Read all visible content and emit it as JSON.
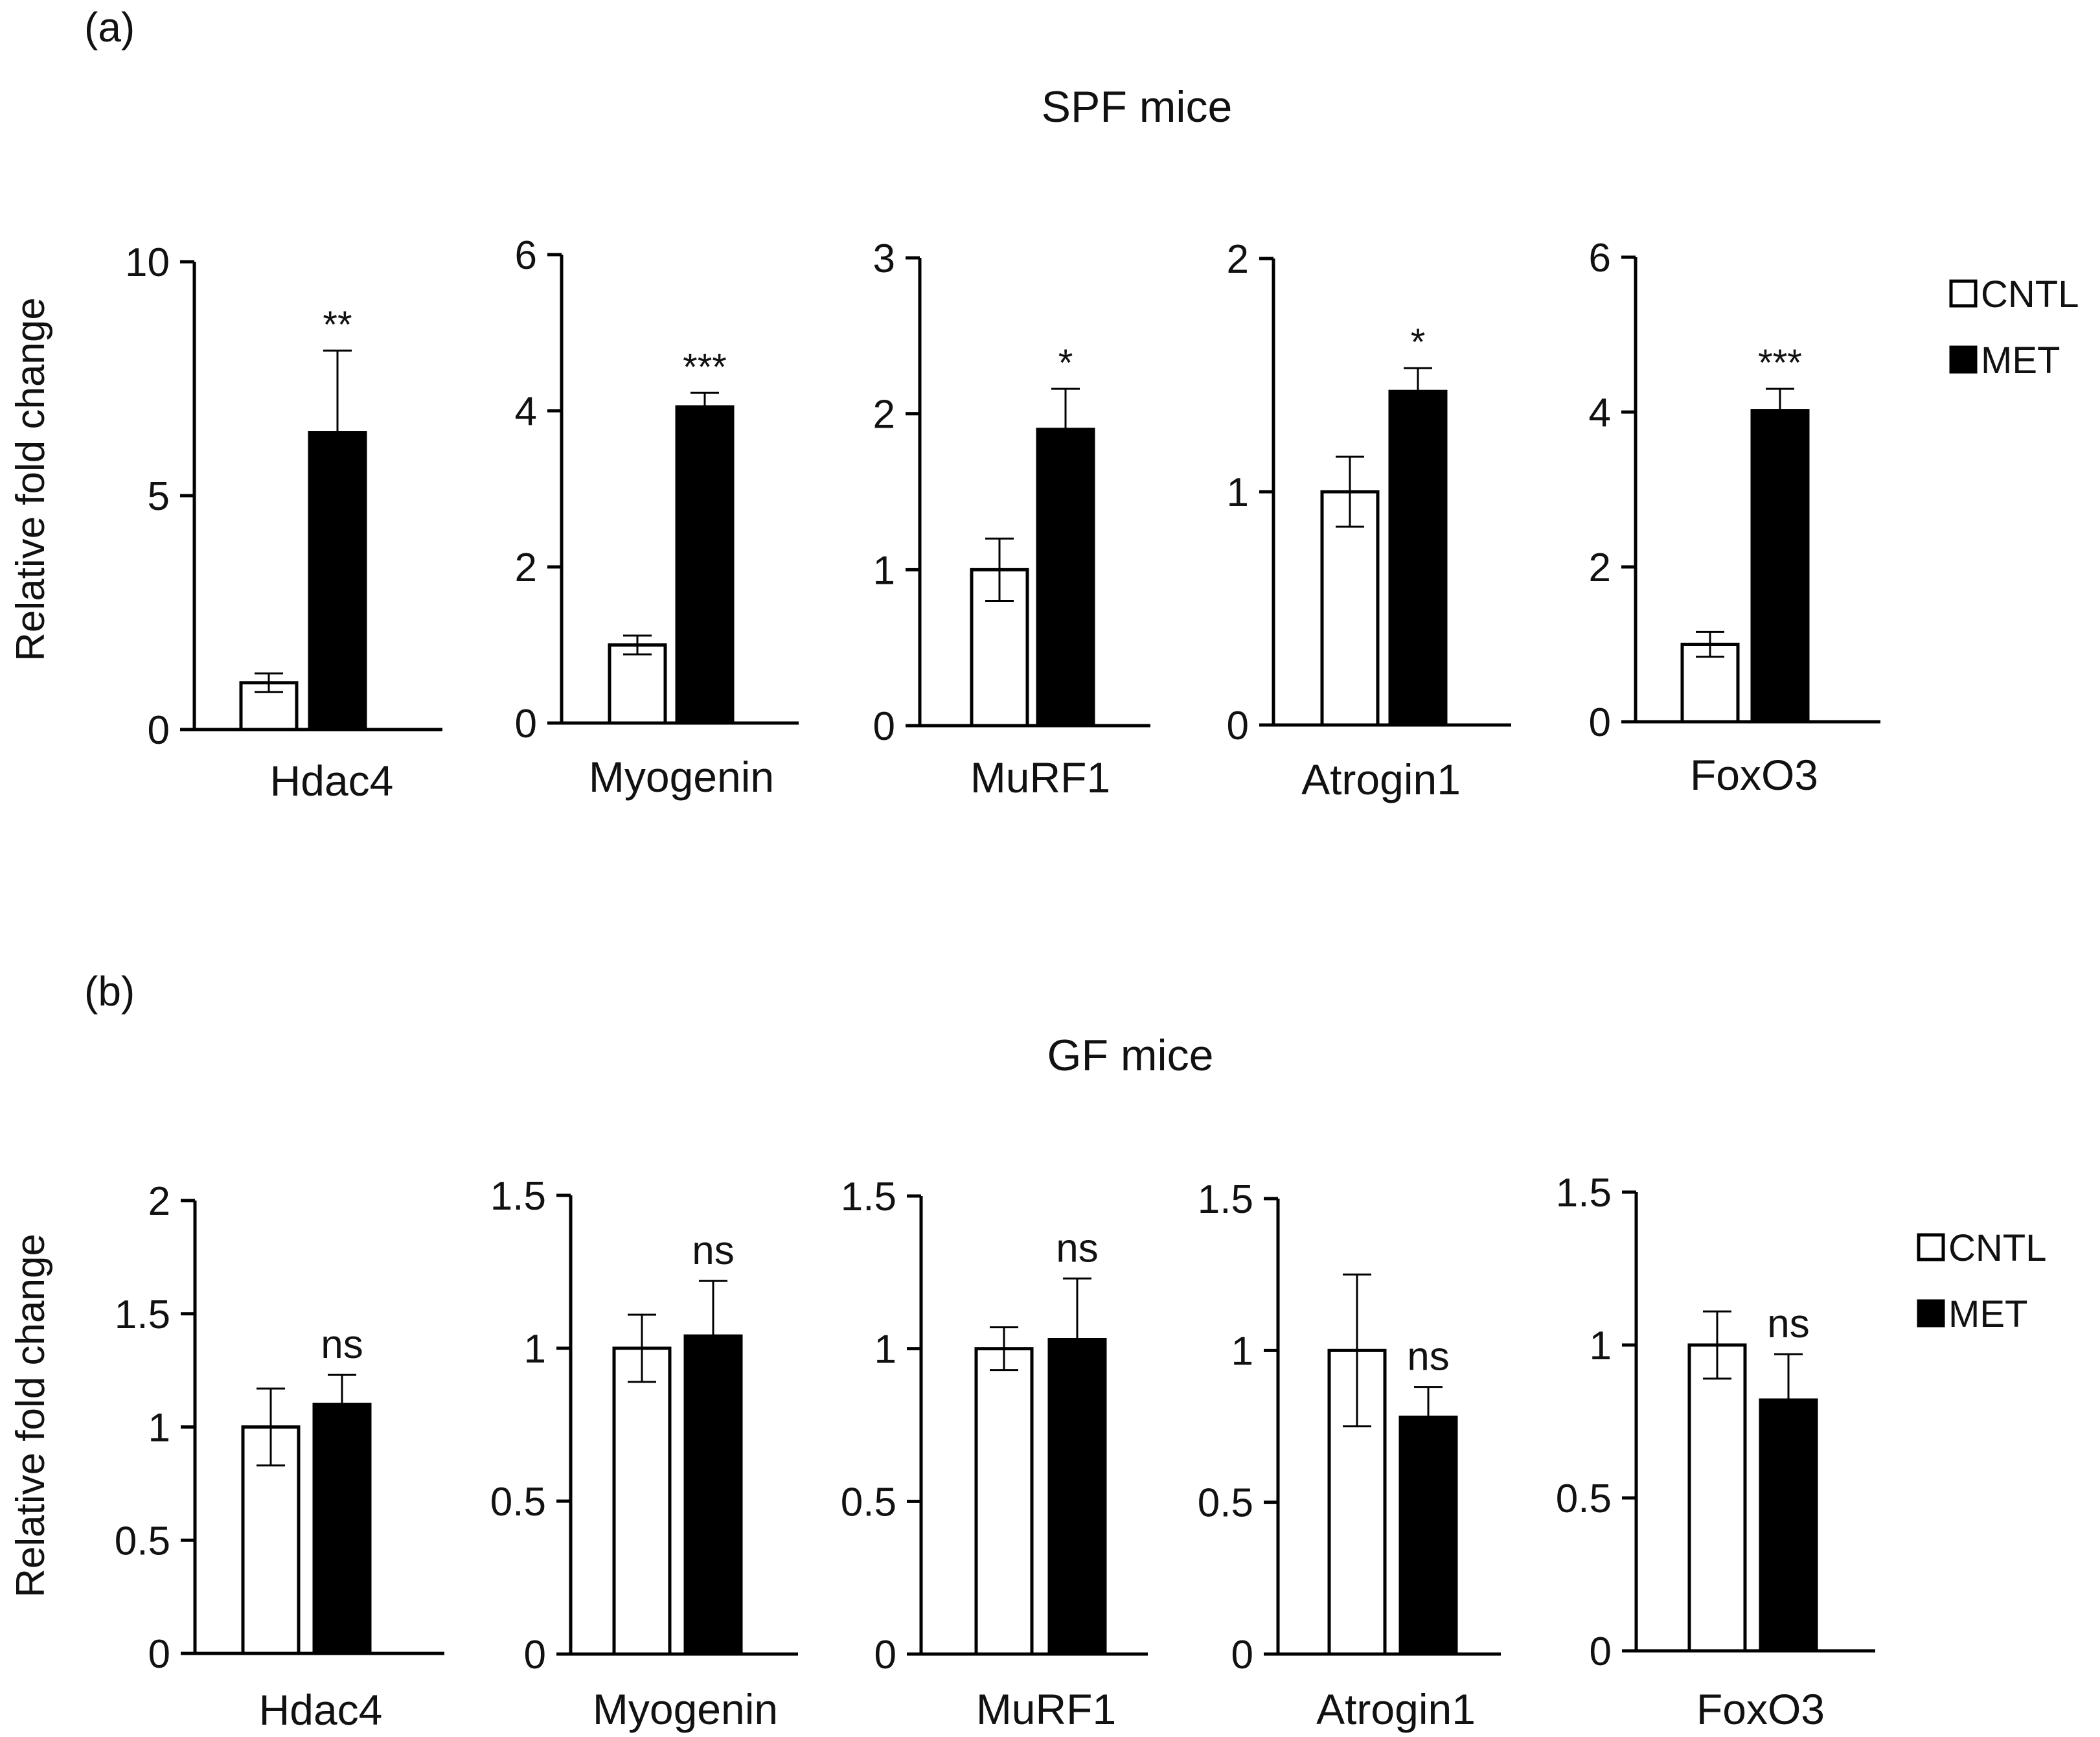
{
  "panels": [
    {
      "label": "(a)",
      "title": "SPF mice"
    },
    {
      "label": "(b)",
      "title": "GF mice"
    }
  ],
  "legend": {
    "cntl": "CNTL",
    "met": "MET"
  },
  "ylabel": "Relative fold change",
  "chart_data": [
    {
      "type": "bar",
      "panel": "(a)",
      "title": "SPF mice",
      "category": "Hdac4",
      "ylabel": "Relative fold change",
      "ylim": [
        0,
        10
      ],
      "ticks": [
        0,
        5,
        10
      ],
      "tick_labels": [
        "0",
        "5",
        "10"
      ],
      "series": [
        {
          "name": "CNTL",
          "value": 1.0,
          "error": 0.2
        },
        {
          "name": "MET",
          "value": 6.35,
          "error": 1.75
        }
      ],
      "annotation": "**"
    },
    {
      "type": "bar",
      "panel": "(a)",
      "title": "SPF mice",
      "category": "Myogenin",
      "ylabel": "",
      "ylim": [
        0,
        6
      ],
      "ticks": [
        0,
        2,
        4,
        6
      ],
      "tick_labels": [
        "0",
        "2",
        "4",
        "6"
      ],
      "series": [
        {
          "name": "CNTL",
          "value": 1.0,
          "error": 0.12
        },
        {
          "name": "MET",
          "value": 4.05,
          "error": 0.18
        }
      ],
      "annotation": "***"
    },
    {
      "type": "bar",
      "panel": "(a)",
      "title": "SPF mice",
      "category": "MuRF1",
      "ylabel": "",
      "ylim": [
        0,
        3
      ],
      "ticks": [
        0,
        1,
        2,
        3
      ],
      "tick_labels": [
        "0",
        "1",
        "2",
        "3"
      ],
      "series": [
        {
          "name": "CNTL",
          "value": 1.0,
          "error": 0.2
        },
        {
          "name": "MET",
          "value": 1.9,
          "error": 0.26
        }
      ],
      "annotation": "*"
    },
    {
      "type": "bar",
      "panel": "(a)",
      "title": "SPF mice",
      "category": "Atrogin1",
      "ylabel": "",
      "ylim": [
        0,
        2
      ],
      "ticks": [
        0,
        1,
        2
      ],
      "tick_labels": [
        "0",
        "1",
        "2"
      ],
      "series": [
        {
          "name": "CNTL",
          "value": 1.0,
          "error": 0.15
        },
        {
          "name": "MET",
          "value": 1.43,
          "error": 0.1
        }
      ],
      "annotation": "*"
    },
    {
      "type": "bar",
      "panel": "(a)",
      "title": "SPF mice",
      "category": "FoxO3",
      "ylabel": "",
      "ylim": [
        0,
        6
      ],
      "ticks": [
        0,
        2,
        4,
        6
      ],
      "tick_labels": [
        "0",
        "2",
        "4",
        "6"
      ],
      "series": [
        {
          "name": "CNTL",
          "value": 1.0,
          "error": 0.16
        },
        {
          "name": "MET",
          "value": 4.02,
          "error": 0.28
        }
      ],
      "annotation": "***"
    },
    {
      "type": "bar",
      "panel": "(b)",
      "title": "GF mice",
      "category": "Hdac4",
      "ylabel": "Relative fold change",
      "ylim": [
        0,
        2
      ],
      "ticks": [
        0,
        0.5,
        1,
        1.5,
        2
      ],
      "tick_labels": [
        "0",
        "0.5",
        "1",
        "1.5",
        "2"
      ],
      "series": [
        {
          "name": "CNTL",
          "value": 1.0,
          "error": 0.17
        },
        {
          "name": "MET",
          "value": 1.1,
          "error": 0.13
        }
      ],
      "annotation": "ns"
    },
    {
      "type": "bar",
      "panel": "(b)",
      "title": "GF mice",
      "category": "Myogenin",
      "ylabel": "",
      "ylim": [
        0,
        1.5
      ],
      "ticks": [
        0,
        0.5,
        1,
        1.5
      ],
      "tick_labels": [
        "0",
        "0.5",
        "1",
        "1.5"
      ],
      "series": [
        {
          "name": "CNTL",
          "value": 1.0,
          "error": 0.11
        },
        {
          "name": "MET",
          "value": 1.04,
          "error": 0.18
        }
      ],
      "annotation": "ns"
    },
    {
      "type": "bar",
      "panel": "(b)",
      "title": "GF mice",
      "category": "MuRF1",
      "ylabel": "",
      "ylim": [
        0,
        1.5
      ],
      "ticks": [
        0,
        0.5,
        1,
        1.5
      ],
      "tick_labels": [
        "0",
        "0.5",
        "1",
        "1.5"
      ],
      "series": [
        {
          "name": "CNTL",
          "value": 1.0,
          "error": 0.07
        },
        {
          "name": "MET",
          "value": 1.03,
          "error": 0.2
        }
      ],
      "annotation": "ns"
    },
    {
      "type": "bar",
      "panel": "(b)",
      "title": "GF mice",
      "category": "Atrogin1",
      "ylabel": "",
      "ylim": [
        0,
        1.5
      ],
      "ticks": [
        0,
        0.5,
        1,
        1.5
      ],
      "tick_labels": [
        "0",
        "0.5",
        "1",
        "1.5"
      ],
      "series": [
        {
          "name": "CNTL",
          "value": 1.0,
          "error": 0.25
        },
        {
          "name": "MET",
          "value": 0.78,
          "error": 0.1
        }
      ],
      "annotation": "ns"
    },
    {
      "type": "bar",
      "panel": "(b)",
      "title": "GF mice",
      "category": "FoxO3",
      "ylabel": "",
      "ylim": [
        0,
        1.5
      ],
      "ticks": [
        0,
        0.5,
        1,
        1.5
      ],
      "tick_labels": [
        "0",
        "0.5",
        "1",
        "1.5"
      ],
      "series": [
        {
          "name": "CNTL",
          "value": 1.0,
          "error": 0.11
        },
        {
          "name": "MET",
          "value": 0.82,
          "error": 0.15
        }
      ],
      "annotation": "ns"
    }
  ]
}
